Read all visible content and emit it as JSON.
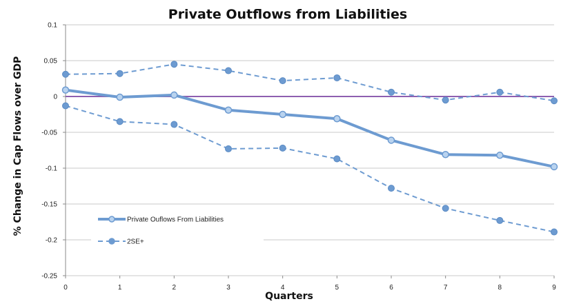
{
  "chart_data": {
    "type": "line",
    "title": "Private Outflows from Liabilities",
    "xlabel": "Quarters",
    "ylabel": "% Change in Cap Flows over  GDP",
    "x": [
      0,
      1,
      2,
      3,
      4,
      5,
      6,
      7,
      8,
      9
    ],
    "x_ticks": [
      "0",
      "1",
      "2",
      "3",
      "4",
      "5",
      "6",
      "7",
      "8",
      "9"
    ],
    "y_ticks": [
      "0.1",
      "0.05",
      "0",
      "-0.05",
      "-0.1",
      "-0.15",
      "-0.2",
      "-0.25"
    ],
    "y_tick_values": [
      0.1,
      0.05,
      0,
      -0.05,
      -0.1,
      -0.15,
      -0.2,
      -0.25
    ],
    "ylim": [
      -0.25,
      0.1
    ],
    "grid": true,
    "legend_position": "bottom-left",
    "zero_line_color": "#8e5fb0",
    "series": [
      {
        "name": "Private Ouflows From Liabilities",
        "style": "solid",
        "color": "#6d9bd1",
        "values": [
          0.009,
          -0.001,
          0.002,
          -0.019,
          -0.025,
          -0.031,
          -0.061,
          -0.081,
          -0.082,
          -0.098
        ]
      },
      {
        "name": "2SE+",
        "style": "dashed",
        "color": "#6d9bd1",
        "values": [
          0.031,
          0.032,
          0.045,
          0.036,
          0.022,
          0.026,
          0.006,
          -0.005,
          0.006,
          -0.006
        ]
      },
      {
        "name": "",
        "style": "dashed",
        "color": "#6d9bd1",
        "values": [
          -0.013,
          -0.035,
          -0.039,
          -0.073,
          -0.072,
          -0.087,
          -0.128,
          -0.156,
          -0.173,
          -0.189
        ]
      }
    ]
  }
}
